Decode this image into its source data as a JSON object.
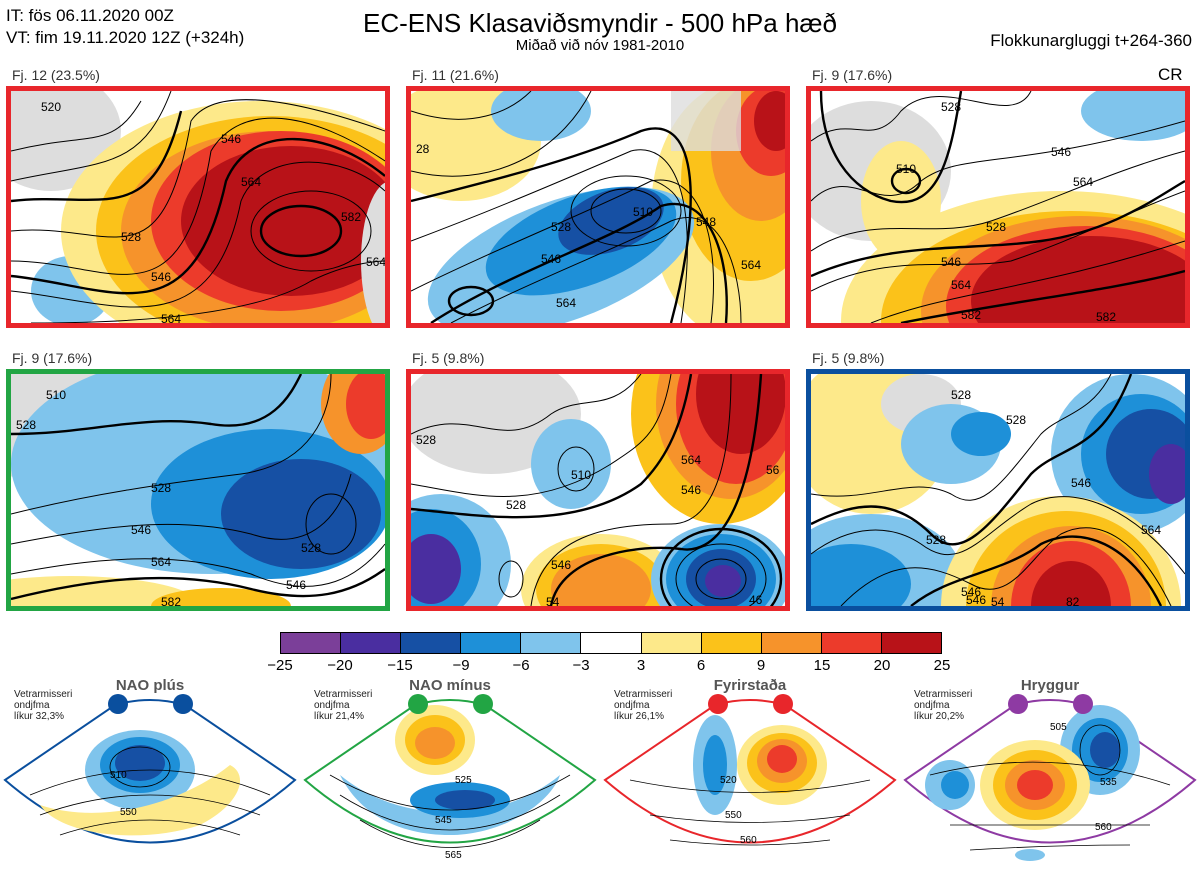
{
  "header": {
    "it_line": "IT: fös 06.11.2020 00Z",
    "vt_line": "VT: fim 19.11.2020 12Z  (+324h)",
    "title": "EC-ENS Klasaviðsmyndir - 500 hPa hæð",
    "subtitle": "Miðað við nóv 1981-2010",
    "window": "Flokkunargluggi t+264-360",
    "cr_label": "CR"
  },
  "panels": [
    {
      "label": "Fj. 12 (23.5%)",
      "frame_color": "#e8262b",
      "contours": [
        "520",
        "546",
        "564",
        "564",
        "528",
        "546",
        "582",
        "564"
      ]
    },
    {
      "label": "Fj. 11 (21.6%)",
      "frame_color": "#e8262b",
      "contours": [
        "28",
        "528",
        "546",
        "564",
        "510",
        "548",
        "564"
      ]
    },
    {
      "label": "Fj. 9 (17.6%)",
      "frame_color": "#e8262b",
      "contours": [
        "528",
        "510",
        "546",
        "564",
        "528",
        "546",
        "564",
        "582",
        "582"
      ]
    },
    {
      "label": "Fj. 9 (17.6%)",
      "frame_color": "#22a544",
      "contours": [
        "510",
        "528",
        "528",
        "546",
        "564",
        "582",
        "528",
        "546"
      ]
    },
    {
      "label": "Fj. 5 (9.8%)",
      "frame_color": "#e8262b",
      "contours": [
        "528",
        "510",
        "528",
        "546",
        "564",
        "546",
        "54",
        "46",
        "56"
      ]
    },
    {
      "label": "Fj. 5 (9.8%)",
      "frame_color": "#0a4f9e",
      "contours": [
        "528",
        "528",
        "546",
        "528",
        "546",
        "564",
        "546",
        "54",
        "82"
      ]
    }
  ],
  "colorbar": {
    "ticks": [
      "−25",
      "−20",
      "−15",
      "−9",
      "−6",
      "−3",
      "3",
      "6",
      "9",
      "15",
      "20",
      "25"
    ],
    "colors": [
      "#7b3f99",
      "#4a2ea0",
      "#1650a4",
      "#1e90d8",
      "#7fc4ec",
      "#ffffff",
      "#fde98a",
      "#fbc21a",
      "#f6932b",
      "#ec3b2b",
      "#b81218"
    ]
  },
  "regimes": [
    {
      "name": "NAO plús",
      "note": [
        "Vetrarmisseri",
        "ondjfma",
        "líkur 32,3%"
      ],
      "color": "#0a4f9e",
      "contours": [
        "510",
        "550"
      ]
    },
    {
      "name": "NAO mínus",
      "note": [
        "Vetrarmisseri",
        "ondjfma",
        "líkur 21,4%"
      ],
      "color": "#22a544",
      "contours": [
        "525",
        "545",
        "565"
      ]
    },
    {
      "name": "Fyrirstaða",
      "note": [
        "Vetrarmisseri",
        "ondjfma",
        "líkur 26,1%"
      ],
      "color": "#e8262b",
      "contours": [
        "520",
        "550",
        "560"
      ]
    },
    {
      "name": "Hryggur",
      "note": [
        "Vetrarmisseri",
        "ondjfma",
        "líkur 20,2%"
      ],
      "color": "#8e3aa3",
      "contours": [
        "505",
        "535",
        "560"
      ]
    }
  ]
}
